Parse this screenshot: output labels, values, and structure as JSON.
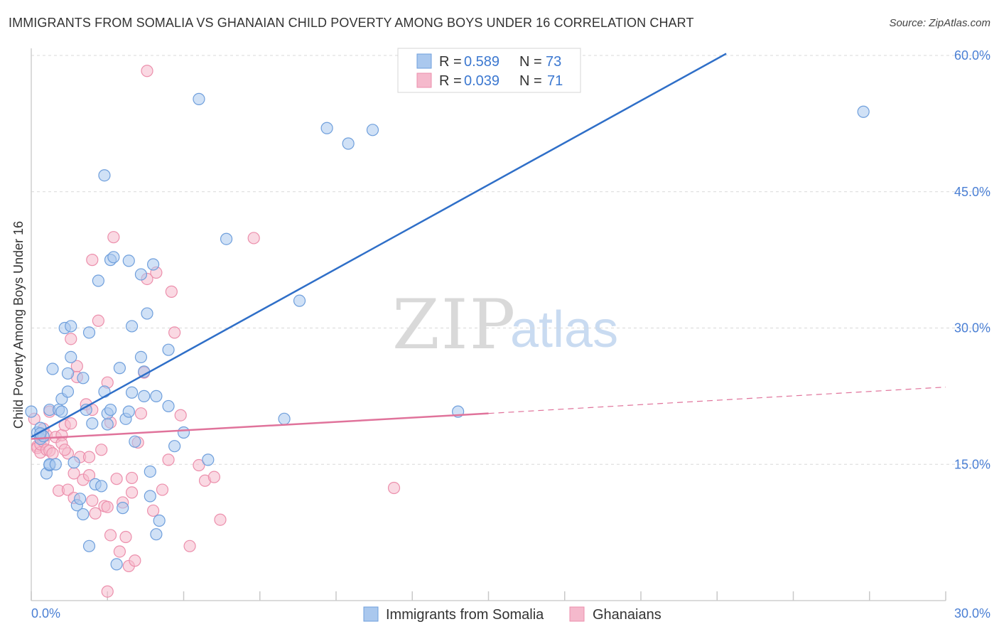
{
  "title": "IMMIGRANTS FROM SOMALIA VS GHANAIAN CHILD POVERTY AMONG BOYS UNDER 16 CORRELATION CHART",
  "source": "Source: ZipAtlas.com",
  "watermark": {
    "zip": "ZIP",
    "atlas": "atlas"
  },
  "colors": {
    "somalia_fill": "#aac8ee",
    "somalia_stroke": "#6f9fdc",
    "somalia_line": "#2f6fc8",
    "ghana_fill": "#f5b9cc",
    "ghana_stroke": "#ec8fac",
    "ghana_line": "#e0739b",
    "grid": "#d9d9d9",
    "axis_text": "#4a7fd4"
  },
  "chart_data": {
    "type": "scatter",
    "title": "IMMIGRANTS FROM SOMALIA VS GHANAIAN CHILD POVERTY AMONG BOYS UNDER 16 CORRELATION CHART",
    "xlabel": "",
    "ylabel": "Child Poverty Among Boys Under 16",
    "xlim": [
      0,
      30
    ],
    "ylim": [
      0,
      60
    ],
    "x_tick_labels": [
      "0.0%",
      "30.0%"
    ],
    "y_ticks": [
      15,
      30,
      45,
      60
    ],
    "y_tick_labels": [
      "15.0%",
      "30.0%",
      "45.0%",
      "60.0%"
    ],
    "legend": [
      {
        "name": "Immigrants from Somalia",
        "r_label": "R =",
        "r": "0.589",
        "n_label": "N =",
        "n": "73"
      },
      {
        "name": "Ghanaians",
        "r_label": "R =",
        "r": "0.039",
        "n_label": "N =",
        "n": "71"
      }
    ],
    "series": [
      {
        "name": "Immigrants from Somalia",
        "trend": {
          "x0": 0,
          "y0": 18.0,
          "x1": 22.8,
          "y1": 60.2,
          "dashed_to": null
        },
        "points": [
          [
            0.0,
            20.8
          ],
          [
            0.2,
            18.5
          ],
          [
            0.3,
            19.0
          ],
          [
            0.3,
            17.8
          ],
          [
            0.4,
            18.1
          ],
          [
            0.5,
            14.0
          ],
          [
            0.6,
            14.9
          ],
          [
            0.6,
            15.0
          ],
          [
            0.6,
            21.0
          ],
          [
            0.7,
            25.5
          ],
          [
            0.8,
            15.0
          ],
          [
            0.9,
            21.0
          ],
          [
            1.0,
            20.8
          ],
          [
            1.0,
            22.2
          ],
          [
            1.1,
            30.0
          ],
          [
            1.2,
            23.0
          ],
          [
            1.2,
            25.0
          ],
          [
            1.3,
            26.8
          ],
          [
            1.3,
            30.2
          ],
          [
            1.4,
            15.2
          ],
          [
            1.5,
            10.5
          ],
          [
            1.6,
            11.2
          ],
          [
            1.7,
            24.5
          ],
          [
            1.7,
            9.5
          ],
          [
            1.8,
            21.0
          ],
          [
            1.9,
            6.0
          ],
          [
            1.9,
            29.5
          ],
          [
            2.0,
            19.5
          ],
          [
            2.1,
            12.8
          ],
          [
            2.2,
            35.2
          ],
          [
            2.3,
            12.6
          ],
          [
            2.4,
            23.0
          ],
          [
            2.5,
            20.6
          ],
          [
            2.4,
            46.8
          ],
          [
            2.5,
            19.4
          ],
          [
            2.6,
            37.5
          ],
          [
            2.6,
            21.0
          ],
          [
            2.7,
            37.8
          ],
          [
            2.8,
            4.0
          ],
          [
            2.9,
            25.6
          ],
          [
            3.0,
            10.2
          ],
          [
            3.1,
            20.0
          ],
          [
            3.2,
            37.4
          ],
          [
            3.2,
            20.8
          ],
          [
            3.3,
            30.2
          ],
          [
            3.3,
            22.9
          ],
          [
            3.4,
            17.5
          ],
          [
            3.6,
            26.8
          ],
          [
            3.6,
            35.9
          ],
          [
            3.7,
            25.2
          ],
          [
            3.7,
            22.5
          ],
          [
            3.8,
            31.6
          ],
          [
            3.9,
            14.2
          ],
          [
            3.9,
            11.5
          ],
          [
            4.0,
            37.0
          ],
          [
            4.1,
            22.5
          ],
          [
            4.1,
            7.3
          ],
          [
            4.2,
            8.8
          ],
          [
            4.5,
            27.6
          ],
          [
            4.5,
            21.4
          ],
          [
            4.7,
            17.0
          ],
          [
            5.0,
            18.5
          ],
          [
            5.5,
            55.2
          ],
          [
            5.8,
            15.5
          ],
          [
            6.4,
            39.8
          ],
          [
            8.3,
            20.0
          ],
          [
            8.8,
            33.0
          ],
          [
            9.7,
            52.0
          ],
          [
            10.4,
            50.3
          ],
          [
            11.2,
            51.8
          ],
          [
            14.0,
            20.8
          ],
          [
            27.3,
            53.8
          ],
          [
            0.3,
            18.4
          ]
        ]
      },
      {
        "name": "Ghanaians",
        "trend": {
          "x0": 0,
          "y0": 17.8,
          "x1": 15.0,
          "y1": 20.6,
          "dashed_to": [
            30.0,
            23.5
          ]
        },
        "points": [
          [
            0.1,
            20.0
          ],
          [
            0.2,
            17.0
          ],
          [
            0.2,
            16.8
          ],
          [
            0.3,
            16.3
          ],
          [
            0.3,
            17.2
          ],
          [
            0.4,
            17.5
          ],
          [
            0.5,
            18.2
          ],
          [
            0.5,
            16.6
          ],
          [
            0.6,
            16.5
          ],
          [
            0.6,
            20.8
          ],
          [
            0.7,
            16.2
          ],
          [
            0.8,
            18.0
          ],
          [
            0.9,
            12.1
          ],
          [
            1.0,
            18.2
          ],
          [
            1.0,
            17.3
          ],
          [
            1.1,
            19.3
          ],
          [
            1.2,
            12.2
          ],
          [
            1.2,
            16.2
          ],
          [
            1.3,
            28.8
          ],
          [
            1.3,
            19.5
          ],
          [
            1.4,
            11.3
          ],
          [
            1.4,
            14.0
          ],
          [
            1.5,
            25.8
          ],
          [
            1.5,
            24.6
          ],
          [
            1.6,
            15.8
          ],
          [
            1.7,
            13.3
          ],
          [
            1.8,
            21.6
          ],
          [
            1.9,
            13.8
          ],
          [
            1.9,
            15.8
          ],
          [
            2.0,
            21.0
          ],
          [
            2.0,
            11.0
          ],
          [
            2.0,
            37.5
          ],
          [
            2.1,
            9.6
          ],
          [
            2.2,
            30.8
          ],
          [
            2.3,
            16.6
          ],
          [
            2.4,
            10.4
          ],
          [
            2.5,
            10.3
          ],
          [
            2.5,
            24.0
          ],
          [
            2.6,
            7.2
          ],
          [
            2.6,
            19.6
          ],
          [
            2.7,
            40.0
          ],
          [
            2.8,
            13.4
          ],
          [
            2.9,
            5.4
          ],
          [
            3.0,
            10.8
          ],
          [
            3.1,
            7.0
          ],
          [
            3.2,
            3.8
          ],
          [
            3.3,
            11.9
          ],
          [
            3.3,
            13.5
          ],
          [
            3.4,
            4.4
          ],
          [
            3.5,
            17.4
          ],
          [
            3.6,
            20.6
          ],
          [
            3.7,
            25.1
          ],
          [
            3.8,
            58.3
          ],
          [
            3.8,
            35.4
          ],
          [
            4.0,
            9.9
          ],
          [
            4.1,
            36.1
          ],
          [
            4.3,
            12.2
          ],
          [
            4.5,
            15.5
          ],
          [
            4.6,
            34.0
          ],
          [
            4.7,
            29.5
          ],
          [
            4.9,
            20.4
          ],
          [
            5.2,
            6.0
          ],
          [
            5.5,
            14.9
          ],
          [
            5.7,
            13.2
          ],
          [
            6.0,
            13.6
          ],
          [
            6.2,
            8.9
          ],
          [
            7.3,
            39.9
          ],
          [
            11.9,
            12.4
          ],
          [
            2.5,
            1.0
          ],
          [
            0.4,
            18.9
          ],
          [
            1.1,
            16.6
          ]
        ]
      }
    ]
  },
  "bottom_legend": [
    "Immigrants from Somalia",
    "Ghanaians"
  ]
}
